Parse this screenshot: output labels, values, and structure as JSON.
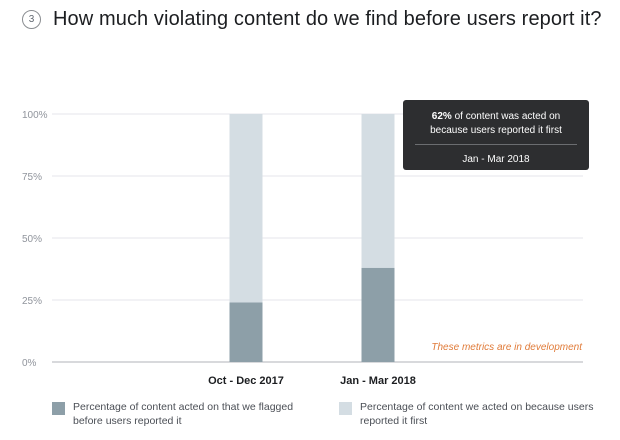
{
  "header": {
    "step": "3",
    "title": "How much violating content do we find before users report it?"
  },
  "chart_data": {
    "type": "bar",
    "stacked": true,
    "categories": [
      "Oct - Dec 2017",
      "Jan - Mar 2018"
    ],
    "series": [
      {
        "name": "Percentage of content acted on that we flagged before users reported it",
        "color": "#8d9fa8",
        "values": [
          24,
          38
        ]
      },
      {
        "name": "Percentage of content we acted on because users reported it first",
        "color": "#d4dde3",
        "values": [
          76,
          62
        ]
      }
    ],
    "y_ticks": [
      "0%",
      "25%",
      "50%",
      "75%",
      "100%"
    ],
    "ylim": [
      0,
      100
    ],
    "grid": true,
    "legend_position": "bottom",
    "annotation": "These metrics are in development"
  },
  "tooltip": {
    "percent": "62%",
    "line1": " of content was acted on",
    "line2": "because users reported it first",
    "period": "Jan - Mar 2018"
  },
  "legend": {
    "items": [
      {
        "label": "Percentage of content acted on that we flagged before users reported it",
        "color": "#8d9fa8"
      },
      {
        "label": "Percentage of content we acted on because users reported it first",
        "color": "#d4dde3"
      }
    ]
  }
}
